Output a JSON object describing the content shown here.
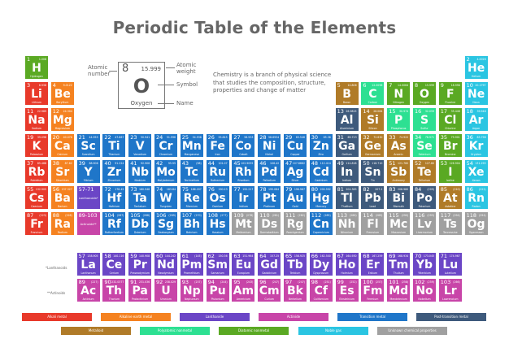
{
  "title": "Periodic Table of the Elements",
  "colors": {
    "alkali": "#e8392a",
    "alkaline": "#f58220",
    "lanthanide": "#6b46c6",
    "actinide": "#c845a8",
    "transition": "#1f76c9",
    "post": "#3e5a7c",
    "metalloid": "#b07b28",
    "polyatomic": "#2de092",
    "diatomic": "#5aa923",
    "noble": "#2ac5e2",
    "unknown": "#a0a0a0"
  },
  "key": {
    "number": "8",
    "weight": "15.999",
    "symbol": "O",
    "name": "Oxygen",
    "labels": {
      "number": "Atomic number",
      "weight": "Atomic weight",
      "symbol": "Symbol",
      "name": "Name"
    }
  },
  "description": "Chemistry is a branch of physical science that studies the composition, structure, properties and change of matter",
  "placeholders": [
    {
      "range": "57-71",
      "label": "Lanthanoids*",
      "cat": "lanthanide"
    },
    {
      "range": "89-103",
      "label": "Actinoids**",
      "cat": "actinide"
    }
  ],
  "series_labels": {
    "lanthanoids": "*Lanthanoids",
    "actinoids": "**Actinoids"
  },
  "elements": [
    [
      1,
      "H",
      "Hydrogen",
      "1.008",
      "diatomic",
      1,
      1
    ],
    [
      2,
      "He",
      "Helium",
      "4.0026",
      "noble",
      1,
      18
    ],
    [
      3,
      "Li",
      "Lithium",
      "6.938",
      "alkali",
      2,
      1
    ],
    [
      4,
      "Be",
      "Beryllium",
      "9.0122",
      "alkaline",
      2,
      2
    ],
    [
      5,
      "B",
      "Boron",
      "10.806",
      "metalloid",
      2,
      13
    ],
    [
      6,
      "C",
      "Carbon",
      "12.0096",
      "polyatomic",
      2,
      14
    ],
    [
      7,
      "N",
      "Nitrogen",
      "14.0064",
      "diatomic",
      2,
      15
    ],
    [
      8,
      "O",
      "Oxygen",
      "15.999",
      "diatomic",
      2,
      16
    ],
    [
      9,
      "F",
      "Fluorine",
      "18.998",
      "diatomic",
      2,
      17
    ],
    [
      10,
      "Ne",
      "Neon",
      "20.1797",
      "noble",
      2,
      18
    ],
    [
      11,
      "Na",
      "Sodium",
      "22.989",
      "alkali",
      3,
      1
    ],
    [
      12,
      "Mg",
      "Magnesium",
      "24.304",
      "alkaline",
      3,
      2
    ],
    [
      13,
      "Al",
      "Aluminium",
      "26.9815",
      "post",
      3,
      13
    ],
    [
      14,
      "Si",
      "Silicon",
      "28.084",
      "metalloid",
      3,
      14
    ],
    [
      15,
      "P",
      "Phosphorus",
      "30.974",
      "polyatomic",
      3,
      15
    ],
    [
      16,
      "S",
      "Sulfur",
      "32.059",
      "polyatomic",
      3,
      16
    ],
    [
      17,
      "Cl",
      "Chlorine",
      "35.446",
      "diatomic",
      3,
      17
    ],
    [
      18,
      "Ar",
      "Argon",
      "39.948",
      "noble",
      3,
      18
    ],
    [
      19,
      "K",
      "Potassium",
      "39.098",
      "alkali",
      4,
      1
    ],
    [
      20,
      "Ca",
      "Calcium",
      "40.078",
      "alkaline",
      4,
      2
    ],
    [
      21,
      "Sc",
      "Scandium",
      "44.955",
      "transition",
      4,
      3
    ],
    [
      22,
      "Ti",
      "Titanium",
      "47.867",
      "transition",
      4,
      4
    ],
    [
      23,
      "V",
      "Vanadium",
      "50.941",
      "transition",
      4,
      5
    ],
    [
      24,
      "Cr",
      "Chromium",
      "51.996",
      "transition",
      4,
      6
    ],
    [
      25,
      "Mn",
      "Manganese",
      "54.938",
      "transition",
      4,
      7
    ],
    [
      26,
      "Fe",
      "Iron",
      "55.845",
      "transition",
      4,
      8
    ],
    [
      27,
      "Co",
      "Cobalt",
      "58.933",
      "transition",
      4,
      9
    ],
    [
      28,
      "Ni",
      "Nickel",
      "58.6934",
      "transition",
      4,
      10
    ],
    [
      29,
      "Cu",
      "Copper",
      "63.546",
      "transition",
      4,
      11
    ],
    [
      30,
      "Zn",
      "Zinc",
      "65.38",
      "transition",
      4,
      12
    ],
    [
      31,
      "Ga",
      "Gallium",
      "69.723",
      "post",
      4,
      13
    ],
    [
      32,
      "Ge",
      "Germanium",
      "72.630",
      "metalloid",
      4,
      14
    ],
    [
      33,
      "As",
      "Arsenic",
      "74.922",
      "metalloid",
      4,
      15
    ],
    [
      34,
      "Se",
      "Selenium",
      "78.971",
      "polyatomic",
      4,
      16
    ],
    [
      35,
      "Br",
      "Bromine",
      "79.901",
      "diatomic",
      4,
      17
    ],
    [
      36,
      "Kr",
      "Krypton",
      "83.798",
      "noble",
      4,
      18
    ],
    [
      37,
      "Rb",
      "Rubidium",
      "85.468",
      "alkali",
      5,
      1
    ],
    [
      38,
      "Sr",
      "Strontium",
      "87.62",
      "alkaline",
      5,
      2
    ],
    [
      39,
      "Y",
      "Yttrium",
      "88.906",
      "transition",
      5,
      3
    ],
    [
      40,
      "Zr",
      "Zirconium",
      "91.224",
      "transition",
      5,
      4
    ],
    [
      41,
      "Nb",
      "Niobium",
      "92.906",
      "transition",
      5,
      5
    ],
    [
      42,
      "Mo",
      "Molybdenum",
      "95.95",
      "transition",
      5,
      6
    ],
    [
      43,
      "Tc",
      "Technetium",
      "(98)",
      "transition",
      5,
      7
    ],
    [
      44,
      "Ru",
      "Ruthenium",
      "101.07",
      "transition",
      5,
      8
    ],
    [
      45,
      "Rh",
      "Rhodium",
      "102.9055",
      "transition",
      5,
      9
    ],
    [
      46,
      "Pd",
      "Palladium",
      "106.42",
      "transition",
      5,
      10
    ],
    [
      47,
      "Ag",
      "Silver",
      "107.8682",
      "transition",
      5,
      11
    ],
    [
      48,
      "Cd",
      "Cadmium",
      "112.414",
      "transition",
      5,
      12
    ],
    [
      49,
      "In",
      "Indium",
      "114.818",
      "post",
      5,
      13
    ],
    [
      50,
      "Sn",
      "Tin",
      "118.710",
      "post",
      5,
      14
    ],
    [
      51,
      "Sb",
      "Antimony",
      "121.760",
      "metalloid",
      5,
      15
    ],
    [
      52,
      "Te",
      "Tellurium",
      "127.60",
      "metalloid",
      5,
      16
    ],
    [
      53,
      "I",
      "Iodine",
      "126.904",
      "diatomic",
      5,
      17
    ],
    [
      54,
      "Xe",
      "Xenon",
      "131.293",
      "noble",
      5,
      18
    ],
    [
      55,
      "Cs",
      "Caesium",
      "132.905",
      "alkali",
      6,
      1
    ],
    [
      56,
      "Ba",
      "Barium",
      "137.327",
      "alkaline",
      6,
      2
    ],
    [
      72,
      "Hf",
      "Hafnium",
      "178.49",
      "transition",
      6,
      4
    ],
    [
      73,
      "Ta",
      "Tantalum",
      "180.948",
      "transition",
      6,
      5
    ],
    [
      74,
      "W",
      "Tungsten",
      "183.84",
      "transition",
      6,
      6
    ],
    [
      75,
      "Re",
      "Rhenium",
      "186.207",
      "transition",
      6,
      7
    ],
    [
      76,
      "Os",
      "Osmium",
      "190.23",
      "transition",
      6,
      8
    ],
    [
      77,
      "Ir",
      "Iridium",
      "192.217",
      "transition",
      6,
      9
    ],
    [
      78,
      "Pt",
      "Platinum",
      "195.084",
      "transition",
      6,
      10
    ],
    [
      79,
      "Au",
      "Gold",
      "196.967",
      "transition",
      6,
      11
    ],
    [
      80,
      "Hg",
      "Mercury",
      "200.592",
      "transition",
      6,
      12
    ],
    [
      81,
      "Tl",
      "Thallium",
      "204.383",
      "post",
      6,
      13
    ],
    [
      82,
      "Pb",
      "Lead",
      "207.2",
      "post",
      6,
      14
    ],
    [
      83,
      "Bi",
      "Bismuth",
      "208.980",
      "post",
      6,
      15
    ],
    [
      84,
      "Po",
      "Polonium",
      "(209)",
      "post",
      6,
      16
    ],
    [
      85,
      "At",
      "Astatine",
      "(210)",
      "metalloid",
      6,
      17
    ],
    [
      86,
      "Rn",
      "Radon",
      "(222)",
      "noble",
      6,
      18
    ],
    [
      87,
      "Fr",
      "Francium",
      "(223)",
      "alkali",
      7,
      1
    ],
    [
      88,
      "Ra",
      "Radium",
      "(226)",
      "alkaline",
      7,
      2
    ],
    [
      104,
      "Rf",
      "Rutherfordium",
      "(267)",
      "transition",
      7,
      4
    ],
    [
      105,
      "Db",
      "Dubnium",
      "(268)",
      "transition",
      7,
      5
    ],
    [
      106,
      "Sg",
      "Seaborgium",
      "(269)",
      "transition",
      7,
      6
    ],
    [
      107,
      "Bh",
      "Bohrium",
      "(270)",
      "transition",
      7,
      7
    ],
    [
      108,
      "Hs",
      "Hassium",
      "(277)",
      "transition",
      7,
      8
    ],
    [
      109,
      "Mt",
      "Meitnerium",
      "(278)",
      "unknown",
      7,
      9
    ],
    [
      110,
      "Ds",
      "Darmstadtium",
      "(281)",
      "unknown",
      7,
      10
    ],
    [
      111,
      "Rg",
      "Roentgenium",
      "(282)",
      "unknown",
      7,
      11
    ],
    [
      112,
      "Cn",
      "Copernicium",
      "(285)",
      "transition",
      7,
      12
    ],
    [
      113,
      "Nh",
      "Nihonium",
      "(286)",
      "unknown",
      7,
      13
    ],
    [
      114,
      "Fl",
      "Flerovium",
      "(289)",
      "unknown",
      7,
      14
    ],
    [
      115,
      "Mc",
      "Moscovium",
      "(290)",
      "unknown",
      7,
      15
    ],
    [
      116,
      "Lv",
      "Livermorium",
      "(293)",
      "unknown",
      7,
      16
    ],
    [
      117,
      "Ts",
      "Tennessine",
      "(294)",
      "unknown",
      7,
      17
    ],
    [
      118,
      "Og",
      "Oganesson",
      "(294)",
      "unknown",
      7,
      18
    ],
    [
      57,
      "La",
      "Lanthanum",
      "138.905",
      "lanthanide",
      9,
      3
    ],
    [
      58,
      "Ce",
      "Cerium",
      "140.116",
      "lanthanide",
      9,
      4
    ],
    [
      59,
      "Pr",
      "Praseodymium",
      "140.908",
      "lanthanide",
      9,
      5
    ],
    [
      60,
      "Nd",
      "Neodymium",
      "144.242",
      "lanthanide",
      9,
      6
    ],
    [
      61,
      "Pm",
      "Promethium",
      "(145)",
      "lanthanide",
      9,
      7
    ],
    [
      62,
      "Sm",
      "Samarium",
      "150.36",
      "lanthanide",
      9,
      8
    ],
    [
      63,
      "Eu",
      "Europium",
      "151.964",
      "lanthanide",
      9,
      9
    ],
    [
      64,
      "Gd",
      "Gadolinium",
      "157.25",
      "lanthanide",
      9,
      10
    ],
    [
      65,
      "Tb",
      "Terbium",
      "158.925",
      "lanthanide",
      9,
      11
    ],
    [
      66,
      "Dy",
      "Dysprosium",
      "162.500",
      "lanthanide",
      9,
      12
    ],
    [
      67,
      "Ho",
      "Holmium",
      "164.930",
      "lanthanide",
      9,
      13
    ],
    [
      68,
      "Er",
      "Erbium",
      "167.259",
      "lanthanide",
      9,
      14
    ],
    [
      69,
      "Tm",
      "Thulium",
      "168.934",
      "lanthanide",
      9,
      15
    ],
    [
      70,
      "Yb",
      "Ytterbium",
      "173.045",
      "lanthanide",
      9,
      16
    ],
    [
      71,
      "Lu",
      "Lutetium",
      "174.967",
      "lanthanide",
      9,
      17
    ],
    [
      89,
      "Ac",
      "Actinium",
      "(227)",
      "actinide",
      10,
      3
    ],
    [
      90,
      "Th",
      "Thorium",
      "232.0377",
      "actinide",
      10,
      4
    ],
    [
      91,
      "Pa",
      "Protactinium",
      "231.036",
      "actinide",
      10,
      5
    ],
    [
      92,
      "U",
      "Uranium",
      "238.029",
      "actinide",
      10,
      6
    ],
    [
      93,
      "Np",
      "Neptunium",
      "(237)",
      "actinide",
      10,
      7
    ],
    [
      94,
      "Pu",
      "Plutonium",
      "(244)",
      "actinide",
      10,
      8
    ],
    [
      95,
      "Am",
      "Americium",
      "(243)",
      "actinide",
      10,
      9
    ],
    [
      96,
      "Cm",
      "Curium",
      "(247)",
      "actinide",
      10,
      10
    ],
    [
      97,
      "Bk",
      "Berkelium",
      "(247)",
      "actinide",
      10,
      11
    ],
    [
      98,
      "Cf",
      "Californium",
      "(251)",
      "actinide",
      10,
      12
    ],
    [
      99,
      "Es",
      "Einsteinium",
      "(252)",
      "actinide",
      10,
      13
    ],
    [
      100,
      "Fm",
      "Fermium",
      "(257)",
      "actinide",
      10,
      14
    ],
    [
      101,
      "Md",
      "Mendelevium",
      "(258)",
      "actinide",
      10,
      15
    ],
    [
      102,
      "No",
      "Nobelium",
      "(259)",
      "actinide",
      10,
      16
    ],
    [
      103,
      "Lr",
      "Lawrencium",
      "(266)",
      "actinide",
      10,
      17
    ]
  ],
  "legend": [
    [
      {
        "label": "Alkali metal",
        "cat": "alkali"
      },
      {
        "label": "Alkaline earth metal",
        "cat": "alkaline"
      },
      {
        "label": "Lanthanide",
        "cat": "lanthanide"
      },
      {
        "label": "Actinide",
        "cat": "actinide"
      },
      {
        "label": "Transition metal",
        "cat": "transition"
      },
      {
        "label": "Post-transition metal",
        "cat": "post"
      }
    ],
    [
      {
        "label": "Metalloid",
        "cat": "metalloid"
      },
      {
        "label": "Polyatomic nonmetal",
        "cat": "polyatomic"
      },
      {
        "label": "Diatomic nonmetal",
        "cat": "diatomic"
      },
      {
        "label": "Noble gas",
        "cat": "noble"
      },
      {
        "label": "Unknown chemical properties",
        "cat": "unknown"
      }
    ]
  ]
}
